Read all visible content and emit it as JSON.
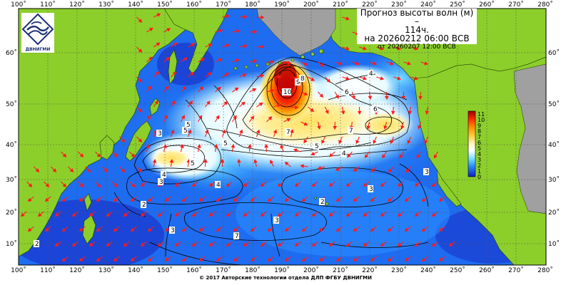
{
  "title": {
    "line1": "Прогноз высоты волн (м) –",
    "line2": "114ч.",
    "line3": "на 20260212 06:00 ВСВ",
    "line4": "от 20260207 12:00 ВСВ"
  },
  "logo": {
    "text": "ДВНИГМИ",
    "icon": "wave-logo-icon"
  },
  "copyright": "© 2017 Авторские технологии отдела ДЛП ФГБУ ДВНИГМИ",
  "axes": {
    "lon_labels": [
      "100˚",
      "110˚",
      "120˚",
      "130˚",
      "140˚",
      "150˚",
      "160˚",
      "170˚",
      "180˚",
      "190˚",
      "200˚",
      "210˚",
      "220˚",
      "230˚",
      "240˚",
      "250˚",
      "260˚",
      "270˚",
      "280˚"
    ],
    "lat_labels": [
      "10˚",
      "20˚",
      "30˚",
      "40˚",
      "50˚",
      "60˚"
    ]
  },
  "colorbar": {
    "labels": [
      "11",
      "10",
      "9",
      "8",
      "7",
      "6",
      "5",
      "4",
      "3",
      "2",
      "1",
      "0"
    ]
  },
  "contour_labels": [
    {
      "text": "10"
    },
    {
      "text": "9"
    },
    {
      "text": "8"
    },
    {
      "text": "7"
    },
    {
      "text": "6"
    },
    {
      "text": "5"
    },
    {
      "text": "5"
    },
    {
      "text": "4"
    },
    {
      "text": "4"
    },
    {
      "text": "3"
    },
    {
      "text": "3"
    },
    {
      "text": "2"
    },
    {
      "text": "5"
    },
    {
      "text": "4"
    },
    {
      "text": "3"
    },
    {
      "text": "3"
    },
    {
      "text": "2"
    },
    {
      "text": "5"
    },
    {
      "text": "6"
    },
    {
      "text": "7"
    },
    {
      "text": "7"
    },
    {
      "text": "5"
    },
    {
      "text": "4"
    },
    {
      "text": "3"
    },
    {
      "text": "2"
    },
    {
      "text": "3"
    }
  ]
}
